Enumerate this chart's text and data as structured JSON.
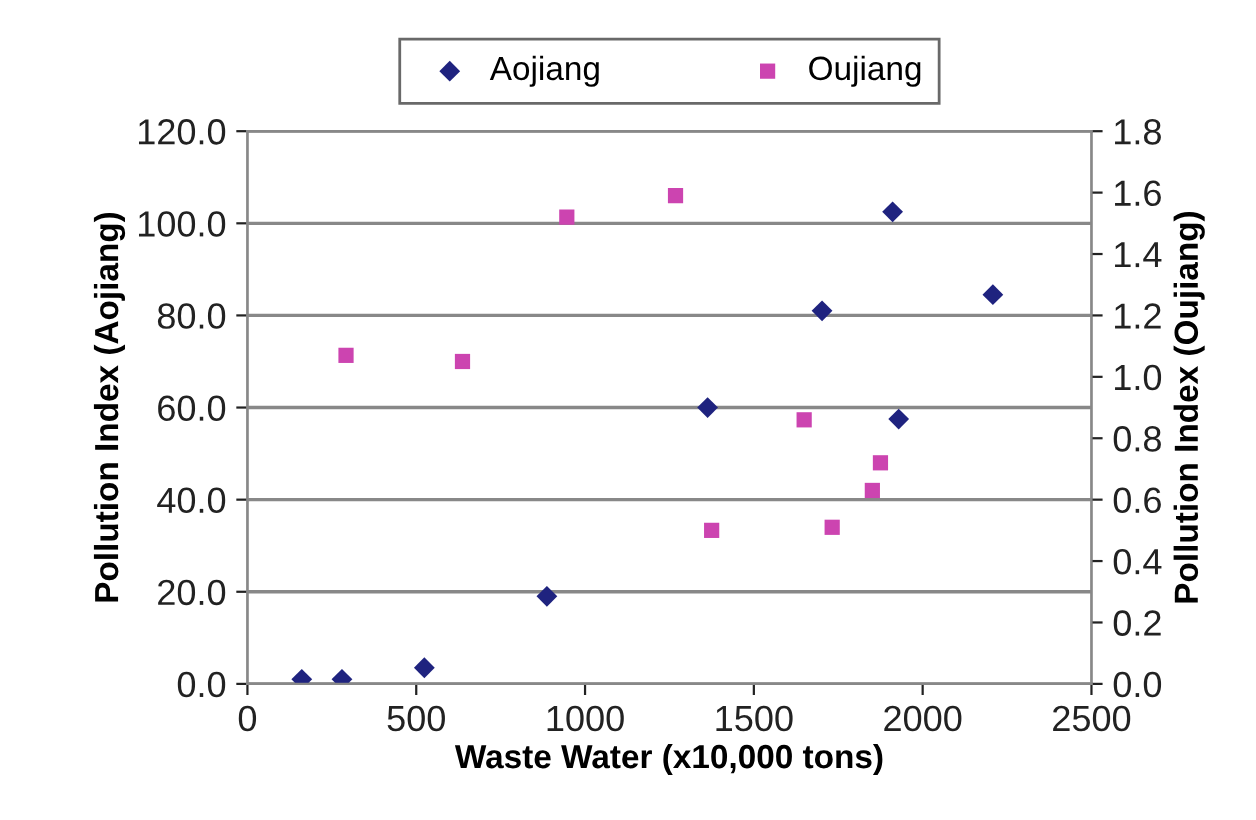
{
  "chart_data": {
    "type": "scatter",
    "xlabel": "Waste Water (x10,000 tons)",
    "ylabel": "Pollution Index (Aojiang)",
    "y2label": "Pollution Index (Oujiang)",
    "series": [
      {
        "name": "Aojiang",
        "color": "#1f237f",
        "marker": "diamond",
        "x": [
          161,
          280,
          524,
          887,
          1363,
          1702,
          1911,
          1929,
          2208
        ],
        "values": [
          1,
          1,
          3.5,
          19,
          60,
          81,
          102.5,
          57.5,
          84.5
        ]
      },
      {
        "name": "Oujiang",
        "color": "#cc44b0",
        "marker": "square",
        "axis": "y2",
        "x": [
          292,
          637,
          946,
          1268,
          1375,
          1649,
          1732,
          1851,
          1875
        ],
        "values": [
          1.07,
          1.05,
          1.52,
          1.59,
          0.5,
          0.86,
          0.51,
          0.63,
          0.72
        ]
      }
    ],
    "xlim": [
      0,
      2500
    ],
    "xticks": [
      0,
      500,
      1000,
      1500,
      2000,
      2500
    ],
    "ylim": [
      0,
      120
    ],
    "yticks": [
      {
        "value": 0,
        "label": "0.0"
      },
      {
        "value": 20,
        "label": "20.0"
      },
      {
        "value": 40,
        "label": "40.0"
      },
      {
        "value": 60,
        "label": "60.0"
      },
      {
        "value": 80,
        "label": "80.0"
      },
      {
        "value": 100,
        "label": "100.0"
      },
      {
        "value": 120,
        "label": "120.0"
      }
    ],
    "y2lim": [
      0,
      1.8
    ],
    "y2ticks": [
      {
        "value": 0,
        "label": "0.0"
      },
      {
        "value": 0.2,
        "label": "0.2"
      },
      {
        "value": 0.4,
        "label": "0.4"
      },
      {
        "value": 0.6,
        "label": "0.6"
      },
      {
        "value": 0.8,
        "label": "0.8"
      },
      {
        "value": 1.0,
        "label": "1.0"
      },
      {
        "value": 1.2,
        "label": "1.2"
      },
      {
        "value": 1.4,
        "label": "1.4"
      },
      {
        "value": 1.6,
        "label": "1.6"
      },
      {
        "value": 1.8,
        "label": "1.8"
      }
    ],
    "grid": "y",
    "legend": "top"
  }
}
